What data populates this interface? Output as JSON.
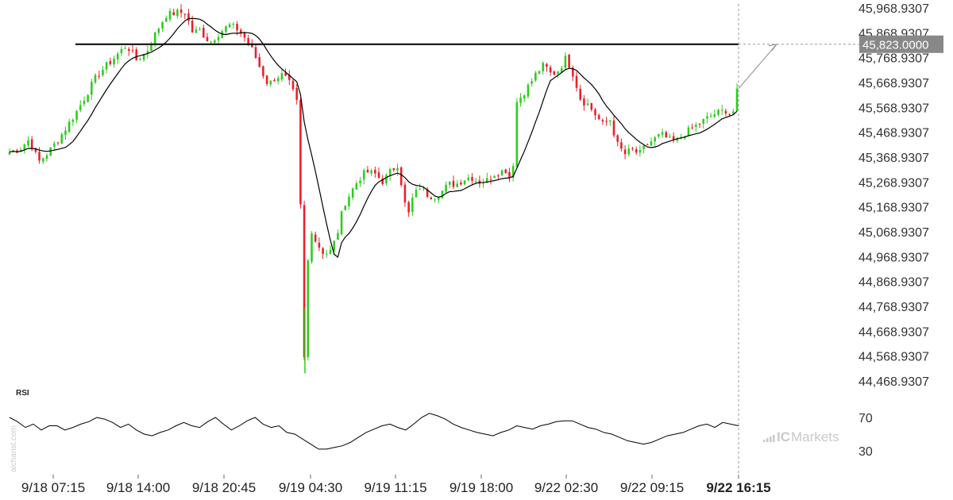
{
  "chart_data": {
    "type": "candlestick",
    "main": {
      "y_ticks": [
        "45,968.9307",
        "45,868.9307",
        "45,768.9307",
        "45,668.9307",
        "45,568.9307",
        "45,468.9307",
        "45,368.9307",
        "45,268.9307",
        "45,168.9307",
        "45,068.9307",
        "44,968.9307",
        "44,868.9307",
        "44,768.9307",
        "44,668.9307",
        "44,568.9307",
        "44,468.9307"
      ],
      "ylim": [
        44468.9307,
        45968.9307
      ],
      "resistance_level": 45823.0,
      "current_price_label": "45,823.0000",
      "x_ticks": [
        "9/18 07:15",
        "9/18 14:00",
        "9/18 20:45",
        "9/19 04:30",
        "9/19 11:15",
        "9/19 18:00",
        "9/22 02:30",
        "9/22 09:15",
        "9/22 16:15"
      ],
      "close_path": [
        [
          0,
          45390
        ],
        [
          8,
          45400
        ],
        [
          16,
          45440
        ],
        [
          24,
          45350
        ],
        [
          32,
          45390
        ],
        [
          40,
          45440
        ],
        [
          48,
          45500
        ],
        [
          56,
          45560
        ],
        [
          64,
          45630
        ],
        [
          72,
          45700
        ],
        [
          80,
          45740
        ],
        [
          88,
          45780
        ],
        [
          96,
          45820
        ],
        [
          100,
          45790
        ],
        [
          104,
          45760
        ],
        [
          112,
          45790
        ],
        [
          120,
          45870
        ],
        [
          128,
          45940
        ],
        [
          136,
          45950
        ],
        [
          144,
          45950
        ],
        [
          150,
          45870
        ],
        [
          156,
          45880
        ],
        [
          164,
          45830
        ],
        [
          172,
          45870
        ],
        [
          180,
          45900
        ],
        [
          188,
          45880
        ],
        [
          194,
          45840
        ],
        [
          200,
          45790
        ],
        [
          206,
          45720
        ],
        [
          212,
          45660
        ],
        [
          218,
          45690
        ],
        [
          224,
          45700
        ],
        [
          230,
          45660
        ],
        [
          236,
          45580
        ],
        [
          238,
          45420
        ],
        [
          239,
          44800
        ],
        [
          240,
          44720
        ],
        [
          242,
          44500
        ],
        [
          244,
          44900
        ],
        [
          246,
          45100
        ],
        [
          250,
          45040
        ],
        [
          256,
          44990
        ],
        [
          262,
          44980
        ],
        [
          268,
          45050
        ],
        [
          274,
          45180
        ],
        [
          280,
          45230
        ],
        [
          286,
          45280
        ],
        [
          292,
          45310
        ],
        [
          300,
          45300
        ],
        [
          306,
          45270
        ],
        [
          312,
          45310
        ],
        [
          318,
          45340
        ],
        [
          322,
          45240
        ],
        [
          326,
          45120
        ],
        [
          330,
          45200
        ],
        [
          336,
          45250
        ],
        [
          342,
          45220
        ],
        [
          348,
          45210
        ],
        [
          354,
          45230
        ],
        [
          360,
          45260
        ],
        [
          366,
          45260
        ],
        [
          372,
          45280
        ],
        [
          378,
          45290
        ],
        [
          384,
          45270
        ],
        [
          390,
          45270
        ],
        [
          396,
          45300
        ],
        [
          402,
          45310
        ],
        [
          408,
          45320
        ],
        [
          412,
          45240
        ],
        [
          414,
          45580
        ],
        [
          420,
          45620
        ],
        [
          426,
          45660
        ],
        [
          432,
          45710
        ],
        [
          438,
          45740
        ],
        [
          444,
          45700
        ],
        [
          450,
          45720
        ],
        [
          456,
          45770
        ],
        [
          462,
          45700
        ],
        [
          468,
          45600
        ],
        [
          474,
          45580
        ],
        [
          480,
          45540
        ],
        [
          486,
          45500
        ],
        [
          492,
          45520
        ],
        [
          498,
          45420
        ],
        [
          504,
          45380
        ],
        [
          510,
          45400
        ],
        [
          516,
          45380
        ],
        [
          522,
          45420
        ],
        [
          528,
          45440
        ],
        [
          534,
          45460
        ],
        [
          540,
          45440
        ],
        [
          546,
          45430
        ],
        [
          552,
          45460
        ],
        [
          558,
          45480
        ],
        [
          564,
          45500
        ],
        [
          570,
          45520
        ],
        [
          576,
          45540
        ],
        [
          582,
          45550
        ],
        [
          588,
          45560
        ],
        [
          592,
          45530
        ],
        [
          596,
          45630
        ]
      ]
    },
    "rsi": {
      "label": "RSI",
      "y_ticks": [
        "70",
        "30"
      ],
      "ylim": [
        30,
        70
      ],
      "values": [
        70,
        65,
        58,
        62,
        55,
        60,
        60,
        55,
        58,
        62,
        65,
        70,
        68,
        64,
        58,
        62,
        55,
        50,
        48,
        52,
        55,
        60,
        64,
        60,
        58,
        65,
        70,
        62,
        55,
        60,
        66,
        70,
        62,
        58,
        60,
        52,
        50,
        44,
        38,
        32,
        32,
        34,
        36,
        40,
        46,
        52,
        56,
        60,
        62,
        58,
        55,
        62,
        70,
        75,
        72,
        68,
        62,
        58,
        55,
        52,
        50,
        48,
        52,
        55,
        60,
        58,
        56,
        60,
        62,
        65,
        66,
        66,
        62,
        58,
        56,
        52,
        50,
        46,
        42,
        40,
        38,
        40,
        44,
        48,
        50,
        52,
        56,
        60,
        62,
        58,
        64,
        62,
        60
      ]
    }
  },
  "branding": {
    "watermark": "aicharist.com",
    "logo_prefix": "IC",
    "logo_text": "Markets"
  },
  "colors": {
    "up": "#2ecc1f",
    "down": "#e8202a",
    "ma": "#000000",
    "resistance": "#000000",
    "pricetag": "#888888",
    "grid_dash": "#999999"
  }
}
